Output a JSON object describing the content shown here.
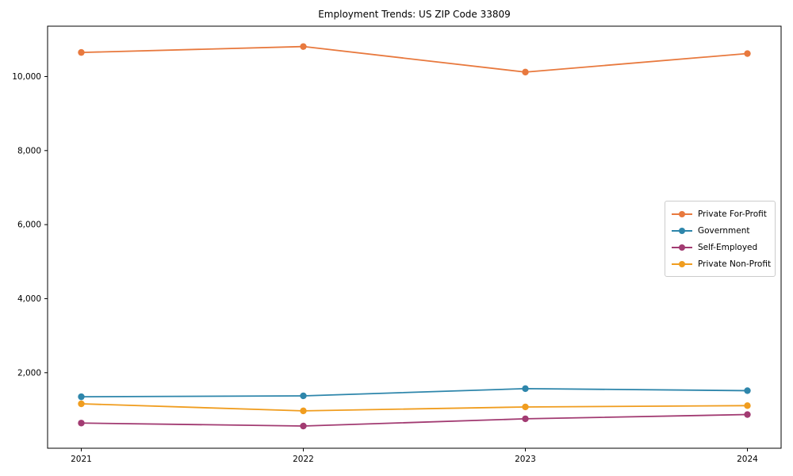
{
  "chart_data": {
    "type": "line",
    "title": "Employment Trends: US ZIP Code 33809",
    "xlabel": "",
    "ylabel": "",
    "x": [
      2021,
      2022,
      2023,
      2024
    ],
    "x_tick_labels": [
      "2021",
      "2022",
      "2023",
      "2024"
    ],
    "series": [
      {
        "name": "Private For-Profit",
        "color": "#e8793e",
        "values": [
          10650,
          10810,
          10120,
          10620
        ]
      },
      {
        "name": "Government",
        "color": "#2e86ab",
        "values": [
          1350,
          1375,
          1570,
          1515
        ]
      },
      {
        "name": "Self-Employed",
        "color": "#a23b72",
        "values": [
          640,
          560,
          755,
          870
        ]
      },
      {
        "name": "Private Non-Profit",
        "color": "#f09d1f",
        "values": [
          1160,
          970,
          1075,
          1110
        ]
      }
    ],
    "yticks": [
      2000,
      4000,
      6000,
      8000,
      10000
    ],
    "ytick_labels": [
      "2,000",
      "4,000",
      "6,000",
      "8,000",
      "10,000"
    ],
    "ylim": [
      -40,
      11360
    ],
    "grid": false,
    "legend_position": "center-right",
    "marker": "circle",
    "axis_color": "#000000",
    "background_color": "#ffffff"
  }
}
